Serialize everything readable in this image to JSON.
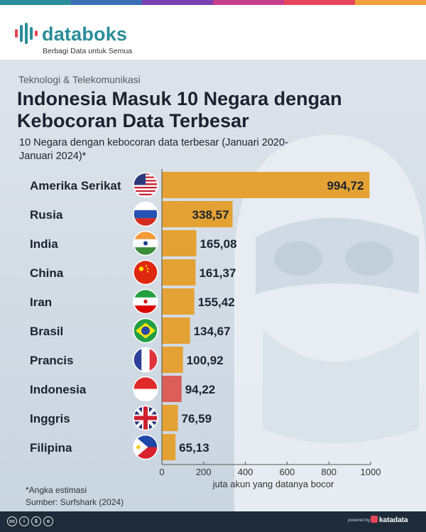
{
  "header": {
    "logo_text": "databoks",
    "tagline": "Berbagi Data untuk Semua",
    "stripe_colors": [
      "#2a8d99",
      "#3d6fb5",
      "#7a3fb0",
      "#c63f8d",
      "#e6455a",
      "#f0a03c"
    ]
  },
  "category": "Teknologi & Telekomunikasi",
  "title": "Indonesia Masuk 10 Negara dengan Kebocoran Data Terbesar",
  "subtitle": "10 Negara dengan kebocoran data terbesar (Januari 2020-Januari 2024)*",
  "footnote": "*Angka estimasi",
  "source": "Sumber: Surfshark (2024)",
  "footer": {
    "cc_icons": [
      "creative-commons-icon",
      "attribution-icon",
      "noncommercial-icon",
      "share-alike-icon"
    ],
    "powered_by": "powered by",
    "brand": "katadata"
  },
  "colors": {
    "bar": "#e3a233",
    "highlight": "#dc5e58",
    "text": "#1c2330",
    "label_inside": "#1c2330"
  },
  "chart_data": {
    "type": "bar",
    "orientation": "horizontal",
    "categories": [
      "Amerika Serikat",
      "Rusia",
      "India",
      "China",
      "Iran",
      "Brasil",
      "Prancis",
      "Indonesia",
      "Inggris",
      "Filipina"
    ],
    "values": [
      994.72,
      338.57,
      165.08,
      161.37,
      155.42,
      134.67,
      100.92,
      94.22,
      76.59,
      65.13
    ],
    "value_labels": [
      "994,72",
      "338,57",
      "165,08",
      "161,37",
      "155,42",
      "134,67",
      "100,92",
      "94,22",
      "76,59",
      "65,13"
    ],
    "highlight": "Indonesia",
    "xlabel": "juta akun yang datanya bocor",
    "xlim": [
      0,
      1000
    ],
    "xticks": [
      0,
      200,
      400,
      600,
      800,
      1000
    ],
    "flags": [
      "us-flag-icon",
      "russia-flag-icon",
      "india-flag-icon",
      "china-flag-icon",
      "iran-flag-icon",
      "brazil-flag-icon",
      "france-flag-icon",
      "indonesia-flag-icon",
      "uk-flag-icon",
      "philippines-flag-icon"
    ]
  }
}
